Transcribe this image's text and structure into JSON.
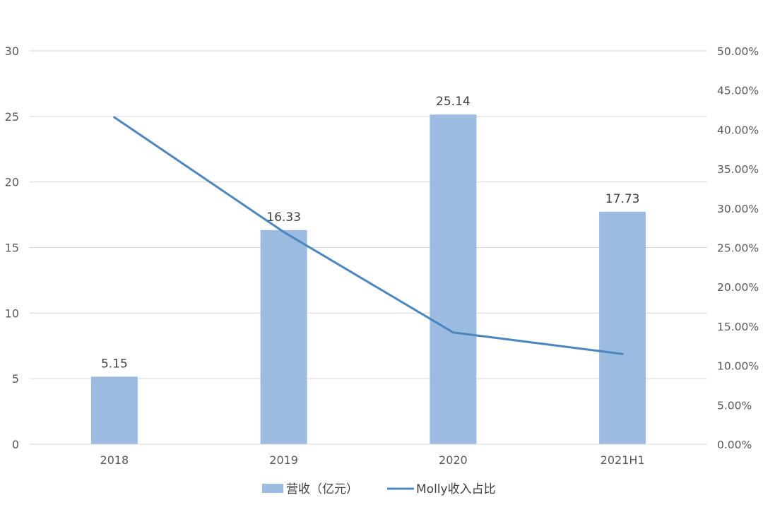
{
  "chart_data": {
    "type": "bar",
    "categories": [
      "2018",
      "2019",
      "2020",
      "2021H1"
    ],
    "series": [
      {
        "name": "营收（亿元）",
        "type": "bar",
        "axis": "left",
        "values": [
          5.15,
          16.33,
          25.14,
          17.73
        ],
        "labels": [
          "5.15",
          "16.33",
          "25.14",
          "17.73"
        ],
        "color": "#9BBBE0"
      },
      {
        "name": "Molly收入占比",
        "type": "line",
        "axis": "right",
        "values": [
          0.4155,
          0.2697,
          0.1421,
          0.1147
        ],
        "color": "#4D86BE"
      }
    ],
    "y_left": {
      "min": 0,
      "max": 30,
      "ticks": [
        0,
        5,
        10,
        15,
        20,
        25,
        30
      ],
      "tick_labels": [
        "0",
        "5",
        "10",
        "15",
        "20",
        "25",
        "30"
      ]
    },
    "y_right": {
      "min": 0,
      "max": 0.5,
      "ticks": [
        0,
        0.05,
        0.1,
        0.15,
        0.2,
        0.25,
        0.3,
        0.35,
        0.4,
        0.45,
        0.5
      ],
      "tick_labels": [
        "0.00%",
        "5.00%",
        "10.00%",
        "15.00%",
        "20.00%",
        "25.00%",
        "30.00%",
        "35.00%",
        "40.00%",
        "45.00%",
        "50.00%"
      ]
    },
    "title": "",
    "xlabel": "",
    "ylabel": "",
    "grid": true,
    "gridline_color": "#D9D9D9",
    "legend_position": "bottom"
  }
}
